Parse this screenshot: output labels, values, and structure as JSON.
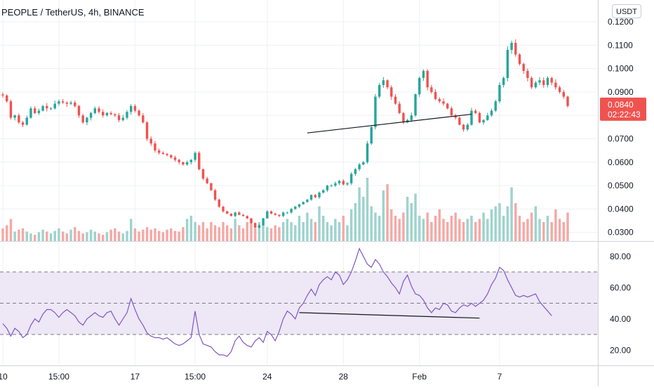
{
  "header": {
    "symbol_title": "PEOPLE / TetherUS, 4h, BINANCE",
    "currency_badge": "USDT"
  },
  "price_marker": {
    "price": "0.0840",
    "countdown": "02:22:43",
    "color": "#ef5350"
  },
  "colors": {
    "up": "#26a69a",
    "down": "#ef5350",
    "volume_up": "#9ed3cd",
    "volume_down": "#f4a9a6",
    "rsi_line": "#7e57c2",
    "rsi_band": "#ede7f6",
    "trendline": "#131722",
    "grid": "#eef0f4",
    "axis_text": "#131722"
  },
  "chart_data": [
    {
      "type": "candlestick",
      "title": "PEOPLE / TetherUS, 4h, BINANCE",
      "x_tick_labels": [
        "10",
        "15:00",
        "17",
        "15:00",
        "24",
        "28",
        "Feb",
        "7"
      ],
      "y_tick_labels": [
        "0.0300",
        "0.0400",
        "0.0500",
        "0.0600",
        "0.0700",
        "0.0800",
        "0.0900",
        "0.1000",
        "0.1100",
        "0.1200"
      ],
      "ylim": [
        0.0264,
        0.1234
      ],
      "grid": true,
      "close": [
        0.0885,
        0.086,
        0.079,
        0.08,
        0.077,
        0.076,
        0.079,
        0.083,
        0.081,
        0.082,
        0.084,
        0.083,
        0.083,
        0.085,
        0.086,
        0.0855,
        0.085,
        0.0855,
        0.084,
        0.08,
        0.077,
        0.079,
        0.081,
        0.083,
        0.0815,
        0.08,
        0.081,
        0.0805,
        0.08,
        0.078,
        0.079,
        0.0815,
        0.084,
        0.082,
        0.08,
        0.077,
        0.07,
        0.068,
        0.065,
        0.064,
        0.0635,
        0.063,
        0.062,
        0.061,
        0.06,
        0.059,
        0.06,
        0.061,
        0.064,
        0.057,
        0.053,
        0.051,
        0.048,
        0.044,
        0.041,
        0.039,
        0.038,
        0.037,
        0.0385,
        0.0375,
        0.037,
        0.036,
        0.034,
        0.032,
        0.033,
        0.036,
        0.039,
        0.038,
        0.0375,
        0.037,
        0.0385,
        0.0385,
        0.04,
        0.041,
        0.042,
        0.043,
        0.044,
        0.046,
        0.045,
        0.047,
        0.048,
        0.05,
        0.05,
        0.051,
        0.052,
        0.0505,
        0.051,
        0.055,
        0.057,
        0.059,
        0.06,
        0.068,
        0.075,
        0.088,
        0.093,
        0.095,
        0.092,
        0.088,
        0.085,
        0.081,
        0.077,
        0.078,
        0.08,
        0.089,
        0.096,
        0.099,
        0.092,
        0.09,
        0.087,
        0.086,
        0.085,
        0.083,
        0.08,
        0.079,
        0.076,
        0.074,
        0.076,
        0.082,
        0.081,
        0.077,
        0.078,
        0.08,
        0.082,
        0.086,
        0.093,
        0.096,
        0.108,
        0.111,
        0.106,
        0.102,
        0.099,
        0.096,
        0.092,
        0.094,
        0.095,
        0.093,
        0.096,
        0.094,
        0.092,
        0.09,
        0.088,
        0.084
      ],
      "series": [
        {
          "name": "Volume",
          "type": "bar",
          "values": [
            0.2,
            0.25,
            0.35,
            0.15,
            0.18,
            0.2,
            0.15,
            0.12,
            0.1,
            0.14,
            0.18,
            0.15,
            0.12,
            0.16,
            0.2,
            0.15,
            0.12,
            0.18,
            0.22,
            0.16,
            0.12,
            0.14,
            0.18,
            0.15,
            0.12,
            0.1,
            0.14,
            0.18,
            0.2,
            0.15,
            0.12,
            0.16,
            0.35,
            0.2,
            0.15,
            0.18,
            0.22,
            0.18,
            0.2,
            0.16,
            0.14,
            0.18,
            0.2,
            0.16,
            0.15,
            0.22,
            0.35,
            0.4,
            0.3,
            0.25,
            0.3,
            0.2,
            0.3,
            0.25,
            0.22,
            0.3,
            0.25,
            0.2,
            0.35,
            0.25,
            0.2,
            0.3,
            0.35,
            0.2,
            0.3,
            0.25,
            0.22,
            0.2,
            0.25,
            0.22,
            0.3,
            0.35,
            0.3,
            0.25,
            0.4,
            0.3,
            0.45,
            0.35,
            0.3,
            0.55,
            0.4,
            0.3,
            0.25,
            0.35,
            0.3,
            0.4,
            0.25,
            0.5,
            0.6,
            0.85,
            0.7,
            1.0,
            0.55,
            0.45,
            0.4,
            0.8,
            0.9,
            0.5,
            0.4,
            0.35,
            0.45,
            0.7,
            0.6,
            0.75,
            0.4,
            0.35,
            0.45,
            0.3,
            0.4,
            0.5,
            0.35,
            0.3,
            0.4,
            0.45,
            0.35,
            0.3,
            0.35,
            0.4,
            0.3,
            0.35,
            0.45,
            0.35,
            0.5,
            0.55,
            0.6,
            0.4,
            0.55,
            0.85,
            0.6,
            0.4,
            0.3,
            0.35,
            0.45,
            0.55,
            0.35,
            0.3,
            0.4,
            0.3,
            0.5,
            0.35,
            0.3,
            0.45
          ]
        },
        {
          "name": "RSI",
          "type": "line",
          "ylim": [
            10,
            90
          ],
          "y_tick_labels": [
            "20.00",
            "40.00",
            "60.00",
            "80.00"
          ],
          "overbought": 70,
          "oversold": 30,
          "midline": 50,
          "values": [
            37,
            34,
            29,
            34,
            32,
            28,
            30,
            36,
            40,
            38,
            43,
            46,
            46,
            44,
            41,
            44,
            46,
            44,
            42,
            38,
            36,
            40,
            42,
            44,
            42,
            41,
            44,
            45,
            40,
            36,
            40,
            44,
            53,
            46,
            40,
            36,
            31,
            29,
            28,
            28,
            27,
            28,
            26,
            24,
            23,
            24,
            26,
            28,
            45,
            30,
            24,
            23,
            22,
            19,
            17,
            17,
            16,
            19,
            26,
            29,
            25,
            23,
            22,
            26,
            28,
            25,
            32,
            30,
            26,
            32,
            40,
            45,
            43,
            40,
            47,
            50,
            55,
            59,
            55,
            62,
            65,
            67,
            65,
            70,
            68,
            62,
            65,
            70,
            77,
            85,
            80,
            75,
            73,
            78,
            75,
            70,
            67,
            63,
            60,
            56,
            64,
            68,
            61,
            56,
            55,
            52,
            47,
            44,
            47,
            46,
            50,
            49,
            45,
            44,
            47,
            49,
            48,
            50,
            48,
            50,
            52,
            56,
            62,
            66,
            73,
            71,
            65,
            60,
            55,
            54,
            55,
            54,
            55,
            56,
            51,
            48,
            45,
            42
          ]
        }
      ],
      "annotations": [
        {
          "type": "trendline",
          "pane": "price",
          "x": [
            76,
            117
          ],
          "y": [
            0.0725,
            0.0805
          ]
        },
        {
          "type": "trendline",
          "pane": "RSI",
          "x": [
            74,
            119
          ],
          "y": [
            44,
            40.5
          ]
        }
      ]
    }
  ]
}
